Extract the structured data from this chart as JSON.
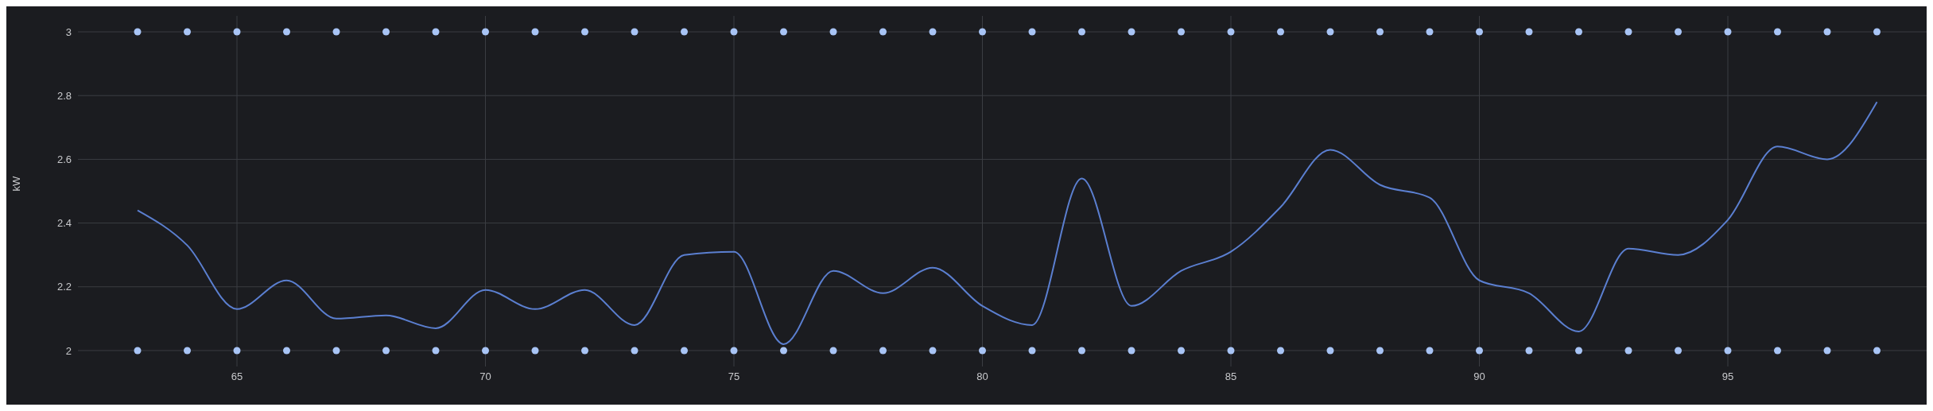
{
  "chart_data": {
    "type": "line",
    "ylabel": "kW",
    "xlim": [
      61.8,
      99
    ],
    "xticks": [
      65,
      70,
      75,
      80,
      85,
      90,
      95
    ],
    "ylim": [
      1.95,
      3.05
    ],
    "yticks": [
      2,
      2.2,
      2.4,
      2.6,
      2.8,
      3
    ],
    "grid": true,
    "legend": false,
    "series": [
      {
        "color": "#5b7fd0",
        "marker": "none",
        "line_style": "solid",
        "x": [
          63,
          64,
          65,
          66,
          67,
          68,
          69,
          70,
          71,
          72,
          73,
          74,
          75,
          76,
          77,
          78,
          79,
          80,
          81,
          82,
          83,
          84,
          85,
          86,
          87,
          88,
          89,
          90,
          91,
          92,
          93,
          94,
          95,
          96,
          97,
          98
        ],
        "values": [
          2.44,
          2.33,
          2.13,
          2.22,
          2.1,
          2.11,
          2.07,
          2.19,
          2.13,
          2.19,
          2.08,
          2.3,
          2.31,
          2.02,
          2.25,
          2.18,
          2.26,
          2.14,
          2.08,
          2.54,
          2.14,
          2.25,
          2.31,
          2.45,
          2.63,
          2.52,
          2.48,
          2.22,
          2.18,
          2.06,
          2.32,
          2.3,
          2.41,
          2.64,
          2.6,
          2.78
        ]
      },
      {
        "type": "scatter",
        "color": "#a8c4f5",
        "marker": "circle",
        "x": [
          63,
          64,
          65,
          66,
          67,
          68,
          69,
          70,
          71,
          72,
          73,
          74,
          75,
          76,
          77,
          78,
          79,
          80,
          81,
          82,
          83,
          84,
          85,
          86,
          87,
          88,
          89,
          90,
          91,
          92,
          93,
          94,
          95,
          96,
          97,
          98
        ],
        "values": [
          3,
          3,
          3,
          3,
          3,
          3,
          3,
          3,
          3,
          3,
          3,
          3,
          3,
          3,
          3,
          3,
          3,
          3,
          3,
          3,
          3,
          3,
          3,
          3,
          3,
          3,
          3,
          3,
          3,
          3,
          3,
          3,
          3,
          3,
          3,
          3
        ]
      },
      {
        "type": "scatter",
        "color": "#a8c4f5",
        "marker": "circle",
        "x": [
          63,
          64,
          65,
          66,
          67,
          68,
          69,
          70,
          71,
          72,
          73,
          74,
          75,
          76,
          77,
          78,
          79,
          80,
          81,
          82,
          83,
          84,
          85,
          86,
          87,
          88,
          89,
          90,
          91,
          92,
          93,
          94,
          95,
          96,
          97,
          98
        ],
        "values": [
          2,
          2,
          2,
          2,
          2,
          2,
          2,
          2,
          2,
          2,
          2,
          2,
          2,
          2,
          2,
          2,
          2,
          2,
          2,
          2,
          2,
          2,
          2,
          2,
          2,
          2,
          2,
          2,
          2,
          2,
          2,
          2,
          2,
          2,
          2,
          2
        ]
      }
    ]
  }
}
